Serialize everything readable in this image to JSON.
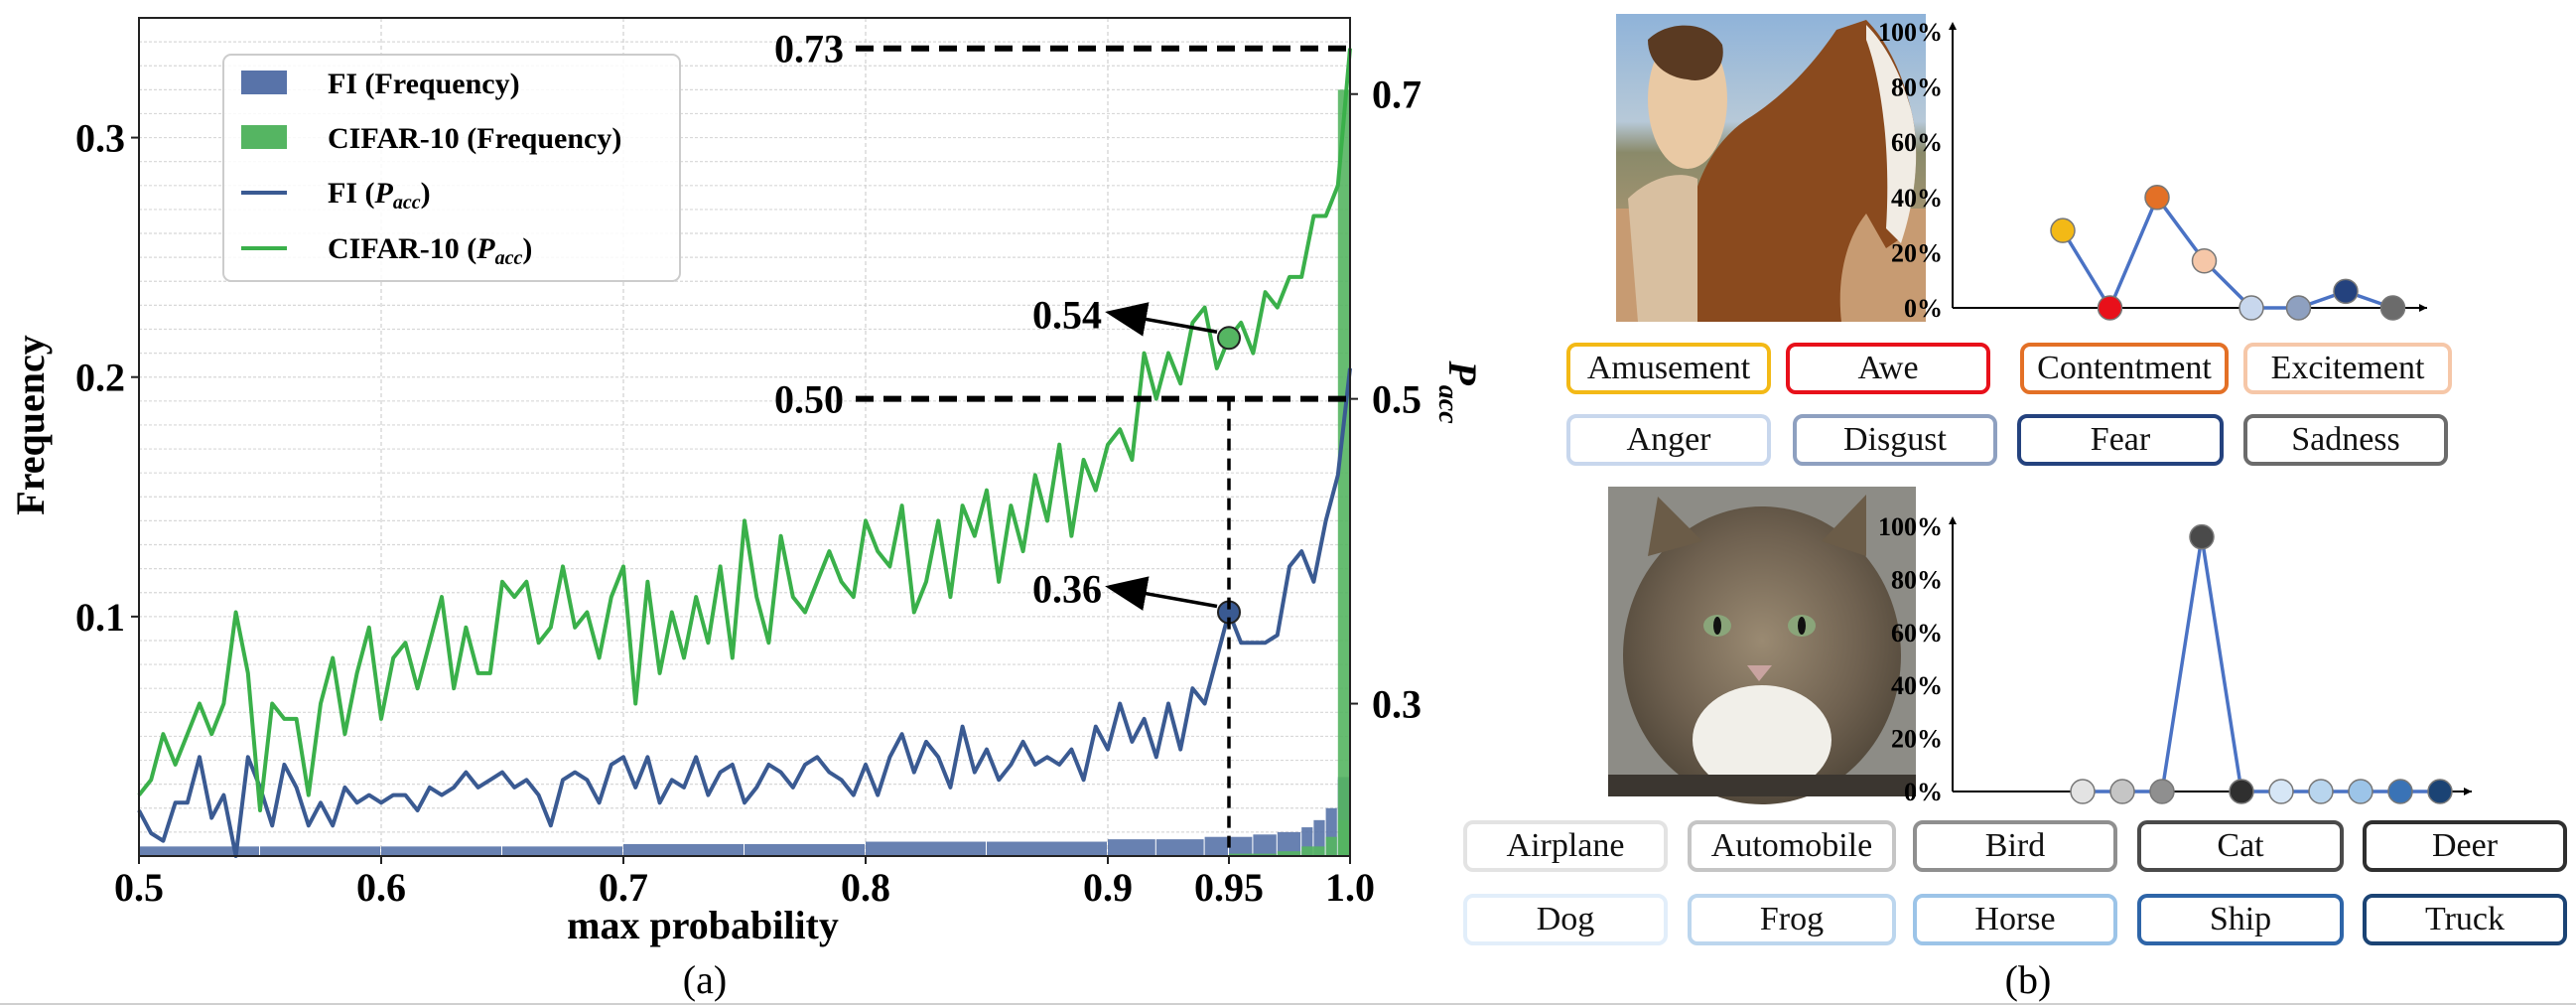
{
  "chart_data": [
    {
      "type": "line",
      "caption": "(a)",
      "xlabel": "max probability",
      "ylabel": "Frequency",
      "y2label": "P",
      "y2label_sub": "acc",
      "xlim": [
        0.5,
        1.0
      ],
      "ylim": [
        0,
        0.35
      ],
      "y2lim": [
        0.2,
        0.75
      ],
      "x_ticks": [
        "0.5",
        "0.6",
        "0.7",
        "0.8",
        "0.9",
        "0.95",
        "1.0"
      ],
      "x_tick_values": [
        0.5,
        0.6,
        0.7,
        0.8,
        0.9,
        0.95,
        1.0
      ],
      "y_ticks": [
        "0.1",
        "0.2",
        "0.3"
      ],
      "y_tick_values": [
        0.1,
        0.2,
        0.3
      ],
      "y2_ticks": [
        "0.3",
        "0.5",
        "0.7"
      ],
      "y2_tick_values": [
        0.3,
        0.5,
        0.7
      ],
      "grid": true,
      "legend_position": "top-left",
      "legend": [
        {
          "label": "FI (Frequency)",
          "kind": "patch",
          "color": "#5873a9"
        },
        {
          "label": "CIFAR-10 (Frequency)",
          "kind": "patch",
          "color": "#55b562"
        },
        {
          "label": "FI (",
          "sub_label": "P",
          "sub_script": "acc",
          "tail": ")",
          "kind": "line",
          "color": "#3a5a92"
        },
        {
          "label": "CIFAR-10 (",
          "sub_label": "P",
          "sub_script": "acc",
          "tail": ")",
          "kind": "line",
          "color": "#3ab04a"
        }
      ],
      "series": [
        {
          "name": "FI (Frequency)",
          "kind": "bar",
          "axis": "left",
          "color": "#5873a9",
          "x": [
            0.5,
            0.55,
            0.6,
            0.65,
            0.7,
            0.75,
            0.8,
            0.85,
            0.9,
            0.92,
            0.94,
            0.95,
            0.96,
            0.97,
            0.98,
            0.985,
            0.99,
            0.995,
            1.0
          ],
          "values": [
            0.004,
            0.004,
            0.004,
            0.004,
            0.005,
            0.005,
            0.006,
            0.006,
            0.007,
            0.007,
            0.008,
            0.008,
            0.009,
            0.01,
            0.012,
            0.015,
            0.02,
            0.032,
            0.033
          ]
        },
        {
          "name": "CIFAR-10 (Frequency)",
          "kind": "bar",
          "axis": "left",
          "color": "#55b562",
          "x": [
            0.95,
            0.97,
            0.98,
            0.99,
            0.995,
            1.0
          ],
          "values": [
            0.001,
            0.002,
            0.004,
            0.008,
            0.015,
            0.32
          ]
        },
        {
          "name": "FI (Pacc)",
          "kind": "line",
          "axis": "right",
          "color": "#3a5a92",
          "x": [
            0.5,
            0.505,
            0.51,
            0.515,
            0.52,
            0.525,
            0.53,
            0.535,
            0.54,
            0.545,
            0.55,
            0.555,
            0.56,
            0.565,
            0.57,
            0.575,
            0.58,
            0.585,
            0.59,
            0.595,
            0.6,
            0.605,
            0.61,
            0.615,
            0.62,
            0.625,
            0.63,
            0.635,
            0.64,
            0.645,
            0.65,
            0.655,
            0.66,
            0.665,
            0.67,
            0.675,
            0.68,
            0.685,
            0.69,
            0.695,
            0.7,
            0.705,
            0.71,
            0.715,
            0.72,
            0.725,
            0.73,
            0.735,
            0.74,
            0.745,
            0.75,
            0.755,
            0.76,
            0.765,
            0.77,
            0.775,
            0.78,
            0.785,
            0.79,
            0.795,
            0.8,
            0.805,
            0.81,
            0.815,
            0.82,
            0.825,
            0.83,
            0.835,
            0.84,
            0.845,
            0.85,
            0.855,
            0.86,
            0.865,
            0.87,
            0.875,
            0.88,
            0.885,
            0.89,
            0.895,
            0.9,
            0.905,
            0.91,
            0.915,
            0.92,
            0.925,
            0.93,
            0.935,
            0.94,
            0.945,
            0.95,
            0.955,
            0.96,
            0.965,
            0.97,
            0.975,
            0.98,
            0.985,
            0.99,
            0.995,
            1.0
          ],
          "values": [
            0.23,
            0.215,
            0.21,
            0.235,
            0.235,
            0.265,
            0.225,
            0.24,
            0.2,
            0.265,
            0.245,
            0.22,
            0.26,
            0.245,
            0.22,
            0.235,
            0.22,
            0.245,
            0.235,
            0.24,
            0.235,
            0.24,
            0.24,
            0.23,
            0.245,
            0.24,
            0.245,
            0.255,
            0.245,
            0.25,
            0.255,
            0.245,
            0.25,
            0.24,
            0.22,
            0.25,
            0.255,
            0.25,
            0.235,
            0.26,
            0.265,
            0.245,
            0.265,
            0.235,
            0.25,
            0.245,
            0.265,
            0.24,
            0.255,
            0.26,
            0.235,
            0.245,
            0.26,
            0.255,
            0.245,
            0.26,
            0.265,
            0.255,
            0.25,
            0.24,
            0.26,
            0.24,
            0.265,
            0.28,
            0.255,
            0.275,
            0.265,
            0.245,
            0.285,
            0.255,
            0.27,
            0.25,
            0.26,
            0.275,
            0.26,
            0.265,
            0.26,
            0.27,
            0.25,
            0.285,
            0.27,
            0.3,
            0.275,
            0.29,
            0.265,
            0.3,
            0.27,
            0.31,
            0.3,
            0.33,
            0.36,
            0.34,
            0.34,
            0.34,
            0.345,
            0.39,
            0.4,
            0.38,
            0.42,
            0.45,
            0.52
          ]
        },
        {
          "name": "CIFAR-10 (Pacc)",
          "kind": "line",
          "axis": "right",
          "color": "#3ab04a",
          "x": [
            0.5,
            0.505,
            0.51,
            0.515,
            0.52,
            0.525,
            0.53,
            0.535,
            0.54,
            0.545,
            0.55,
            0.555,
            0.56,
            0.565,
            0.57,
            0.575,
            0.58,
            0.585,
            0.59,
            0.595,
            0.6,
            0.605,
            0.61,
            0.615,
            0.62,
            0.625,
            0.63,
            0.635,
            0.64,
            0.645,
            0.65,
            0.655,
            0.66,
            0.665,
            0.67,
            0.675,
            0.68,
            0.685,
            0.69,
            0.695,
            0.7,
            0.705,
            0.71,
            0.715,
            0.72,
            0.725,
            0.73,
            0.735,
            0.74,
            0.745,
            0.75,
            0.755,
            0.76,
            0.765,
            0.77,
            0.775,
            0.78,
            0.785,
            0.79,
            0.795,
            0.8,
            0.805,
            0.81,
            0.815,
            0.82,
            0.825,
            0.83,
            0.835,
            0.84,
            0.845,
            0.85,
            0.855,
            0.86,
            0.865,
            0.87,
            0.875,
            0.88,
            0.885,
            0.89,
            0.895,
            0.9,
            0.905,
            0.91,
            0.915,
            0.92,
            0.925,
            0.93,
            0.935,
            0.94,
            0.945,
            0.95,
            0.955,
            0.96,
            0.965,
            0.97,
            0.975,
            0.98,
            0.985,
            0.99,
            0.995,
            1.0
          ],
          "values": [
            0.24,
            0.25,
            0.28,
            0.26,
            0.28,
            0.3,
            0.28,
            0.3,
            0.36,
            0.32,
            0.23,
            0.3,
            0.29,
            0.29,
            0.24,
            0.3,
            0.33,
            0.28,
            0.32,
            0.35,
            0.29,
            0.33,
            0.34,
            0.31,
            0.34,
            0.37,
            0.31,
            0.35,
            0.32,
            0.32,
            0.38,
            0.37,
            0.38,
            0.34,
            0.35,
            0.39,
            0.35,
            0.36,
            0.33,
            0.37,
            0.39,
            0.3,
            0.38,
            0.32,
            0.36,
            0.33,
            0.37,
            0.34,
            0.39,
            0.33,
            0.42,
            0.37,
            0.34,
            0.41,
            0.37,
            0.36,
            0.38,
            0.4,
            0.38,
            0.37,
            0.42,
            0.4,
            0.39,
            0.43,
            0.36,
            0.38,
            0.42,
            0.37,
            0.43,
            0.41,
            0.44,
            0.38,
            0.43,
            0.4,
            0.45,
            0.42,
            0.47,
            0.41,
            0.46,
            0.44,
            0.47,
            0.48,
            0.46,
            0.53,
            0.5,
            0.53,
            0.51,
            0.55,
            0.56,
            0.52,
            0.54,
            0.55,
            0.53,
            0.57,
            0.56,
            0.58,
            0.58,
            0.62,
            0.62,
            0.64,
            0.73
          ]
        }
      ],
      "annotations": [
        {
          "text": "0.73",
          "kind": "dashed-hline",
          "x_from": 0.8,
          "x_to": 1.0,
          "y": 0.73,
          "axis": "right"
        },
        {
          "text": "0.50",
          "kind": "dashed-hline",
          "x_from": 0.8,
          "x_to": 1.0,
          "y": 0.5,
          "axis": "right"
        },
        {
          "text": "0.54",
          "kind": "arrow",
          "x": 0.95,
          "y": 0.54,
          "axis": "right",
          "color": "#55b562"
        },
        {
          "text": "0.36",
          "kind": "arrow",
          "x": 0.95,
          "y": 0.36,
          "axis": "right",
          "color": "#3a5a92"
        }
      ],
      "vline": {
        "x": 0.95,
        "style": "dashed"
      }
    },
    {
      "type": "line",
      "caption": "(b)",
      "panels": [
        {
          "name": "emotion",
          "image": "woman-hugging-horse-photo",
          "y_ticks": [
            "100%",
            "80%",
            "60%",
            "40%",
            "20%",
            "0%"
          ],
          "y_tick_values": [
            100,
            80,
            60,
            40,
            20,
            0
          ],
          "ylim": [
            0,
            100
          ],
          "categories": [
            "Amusement",
            "Awe",
            "Contentment",
            "Excitement",
            "Anger",
            "Disgust",
            "Fear",
            "Sadness"
          ],
          "values": [
            28,
            0,
            40,
            17,
            0,
            0,
            6,
            0
          ],
          "colors": [
            "#f3b916",
            "#e8101a",
            "#e37026",
            "#f6c7a8",
            "#c8d7ed",
            "#8ea0c0",
            "#24427e",
            "#6b6b6b"
          ]
        },
        {
          "name": "object",
          "image": "tabby-cat-photo",
          "y_ticks": [
            "100%",
            "80%",
            "60%",
            "40%",
            "20%",
            "0%"
          ],
          "y_tick_values": [
            100,
            80,
            60,
            40,
            20,
            0
          ],
          "ylim": [
            0,
            100
          ],
          "categories": [
            "Airplane",
            "Automobile",
            "Bird",
            "Cat",
            "Deer",
            "Dog",
            "Frog",
            "Horse",
            "Ship",
            "Truck"
          ],
          "values": [
            0,
            0,
            0,
            96,
            0,
            0,
            0,
            0,
            0,
            0
          ],
          "colors": [
            "#e3e3e3",
            "#c5c5c5",
            "#8f8f8f",
            "#4a4a4a",
            "#2f2f2f",
            "#d6e6f6",
            "#b8d5ee",
            "#9cc4e8",
            "#3a73b6",
            "#1b4374"
          ],
          "border_colors": [
            "#e3e3e3",
            "#c5c5c5",
            "#8f8f8f",
            "#4a4a4a",
            "#2f2f2f",
            "#e2eefa",
            "#bcd6ee",
            "#9cc4e8",
            "#2e65a8",
            "#1b4374"
          ],
          "border_colors_peak": "#444444"
        }
      ]
    }
  ],
  "emotion_tags": [
    {
      "label": "Amusement",
      "color": "#f3b916"
    },
    {
      "label": "Awe",
      "color": "#e8101a"
    },
    {
      "label": "Contentment",
      "color": "#e37026"
    },
    {
      "label": "Excitement",
      "color": "#f6c7a8"
    },
    {
      "label": "Anger",
      "color": "#c8d7ed"
    },
    {
      "label": "Disgust",
      "color": "#8ea0c0"
    },
    {
      "label": "Fear",
      "color": "#24427e"
    },
    {
      "label": "Sadness",
      "color": "#6b6b6b"
    }
  ],
  "object_tags": [
    {
      "label": "Airplane",
      "color": "#e3e3e3"
    },
    {
      "label": "Automobile",
      "color": "#c5c5c5"
    },
    {
      "label": "Bird",
      "color": "#8f8f8f"
    },
    {
      "label": "Cat",
      "color": "#4a4a4a"
    },
    {
      "label": "Deer",
      "color": "#2f2f2f"
    },
    {
      "label": "Dog",
      "color": "#e2eefa"
    },
    {
      "label": "Frog",
      "color": "#bcd6ee"
    },
    {
      "label": "Horse",
      "color": "#9cc4e8"
    },
    {
      "label": "Ship",
      "color": "#2e65a8"
    },
    {
      "label": "Truck",
      "color": "#1b4374"
    }
  ]
}
